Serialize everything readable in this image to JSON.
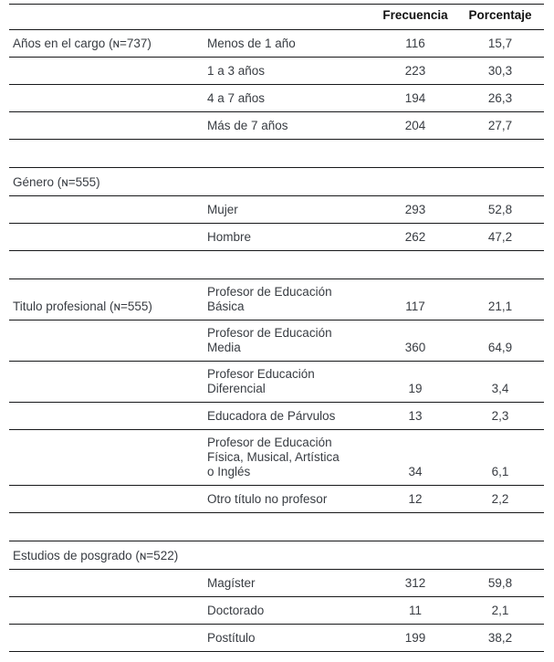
{
  "table": {
    "col_headers": {
      "frequency": "Frecuencia",
      "percentage": "Porcentaje"
    },
    "sections": [
      {
        "title": "Años en el cargo (ɴ=737)",
        "rows": [
          {
            "label": "Menos de 1 año",
            "frequency": "116",
            "percentage": "15,7"
          },
          {
            "label": "1 a 3 años",
            "frequency": "223",
            "percentage": "30,3"
          },
          {
            "label": "4 a 7 años",
            "frequency": "194",
            "percentage": "26,3"
          },
          {
            "label": "Más de 7 años",
            "frequency": "204",
            "percentage": "27,7"
          }
        ]
      },
      {
        "title": "Género (ɴ=555)",
        "rows": [
          {
            "label": "Mujer",
            "frequency": "293",
            "percentage": "52,8"
          },
          {
            "label": "Hombre",
            "frequency": "262",
            "percentage": "47,2"
          }
        ]
      },
      {
        "title": "Titulo profesional (ɴ=555)",
        "rows": [
          {
            "label": "Profesor de Educación\nBásica",
            "frequency": "117",
            "percentage": "21,1"
          },
          {
            "label": "Profesor de Educación\nMedia",
            "frequency": "360",
            "percentage": "64,9"
          },
          {
            "label": "Profesor Educación\nDiferencial",
            "frequency": "19",
            "percentage": "3,4"
          },
          {
            "label": "Educadora de Párvulos",
            "frequency": "13",
            "percentage": "2,3"
          },
          {
            "label": "Profesor de Educación\nFísica, Musical, Artística\no Inglés",
            "frequency": "34",
            "percentage": "6,1"
          },
          {
            "label": "Otro título no profesor",
            "frequency": "12",
            "percentage": "2,2"
          }
        ]
      },
      {
        "title": "Estudios de posgrado (ɴ=522)",
        "rows": [
          {
            "label": "Magíster",
            "frequency": "312",
            "percentage": "59,8"
          },
          {
            "label": "Doctorado",
            "frequency": "11",
            "percentage": "2,1"
          },
          {
            "label": "Postítulo",
            "frequency": "199",
            "percentage": "38,2"
          }
        ]
      }
    ]
  },
  "colors": {
    "background": "#ffffff",
    "body_text": "#383c42",
    "header_text": "#121212",
    "rule_line": "#17181a"
  }
}
